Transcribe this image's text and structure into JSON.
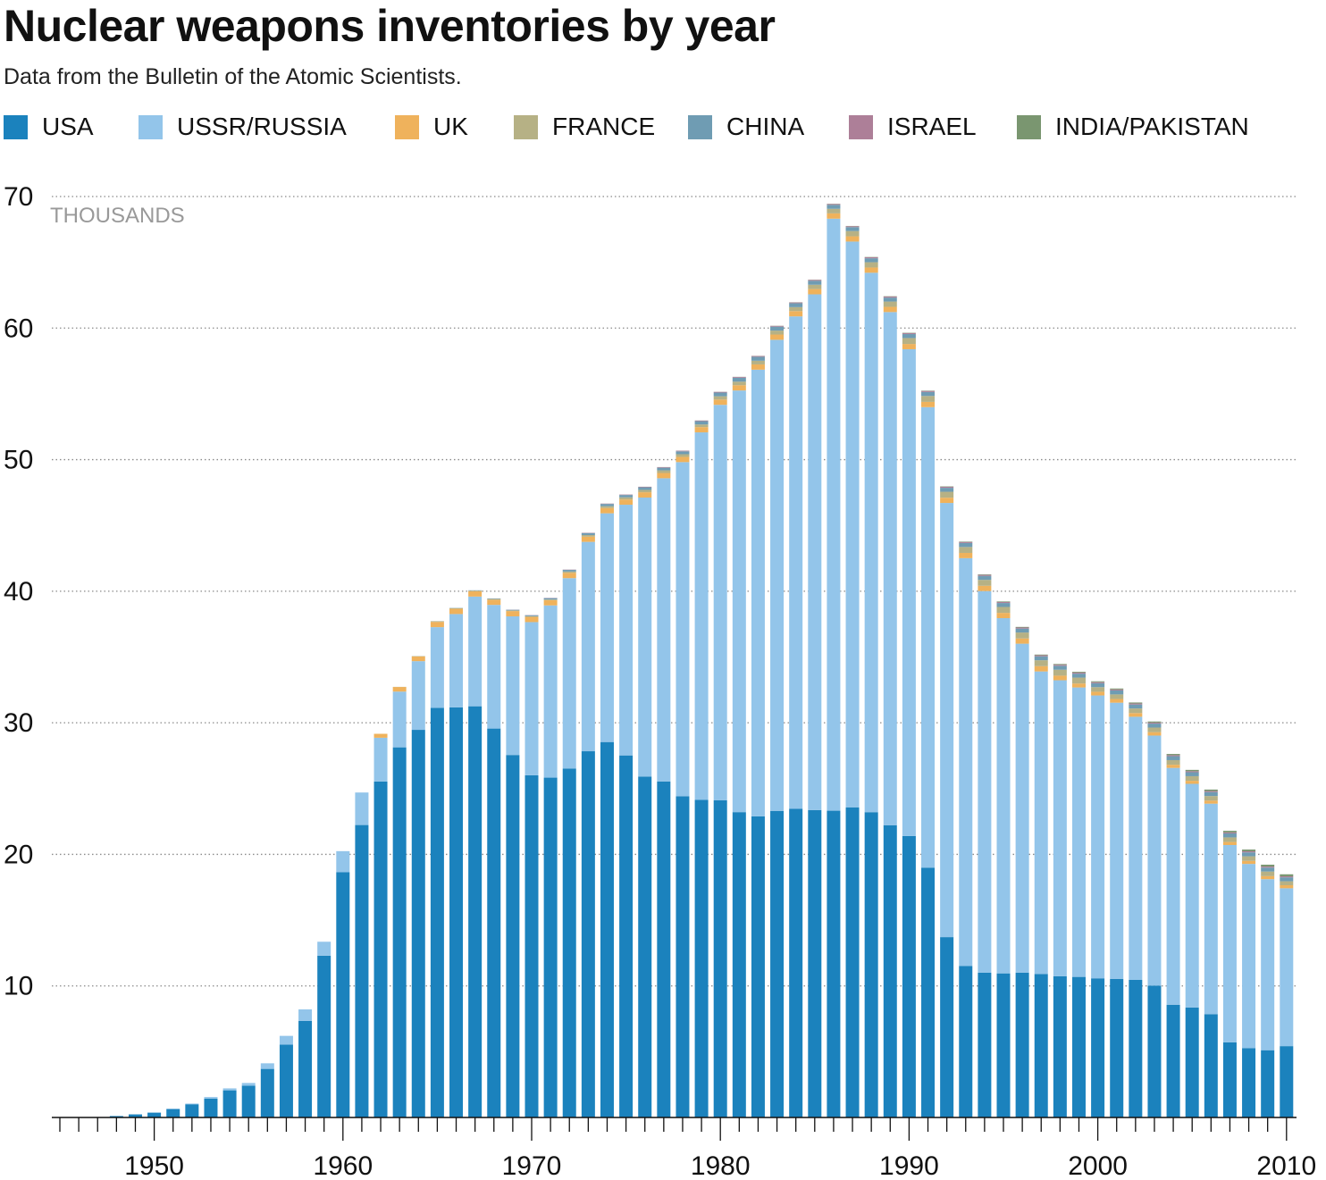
{
  "title": "Nuclear weapons inventories by year",
  "subtitle": "Data from the Bulletin of the Atomic Scientists.",
  "colors": {
    "USA": "#1b82bd",
    "USSR/RUSSIA": "#93c5ea",
    "UK": "#efb25c",
    "FRANCE": "#b6b185",
    "CHINA": "#6f9cb3",
    "ISRAEL": "#ad7f98",
    "INDIA/PAKISTAN": "#7a9670"
  },
  "chart_data": {
    "type": "bar",
    "stacked": true,
    "title": "Nuclear weapons inventories by year",
    "ylabel": "THOUSANDS",
    "ylim": [
      0,
      70
    ],
    "yticks": [
      10,
      20,
      30,
      40,
      50,
      60,
      70
    ],
    "xticks": [
      1950,
      1960,
      1970,
      1980,
      1990,
      2000,
      2010
    ],
    "grid": "horizontal dotted",
    "legend_position": "top",
    "categories": [
      1945,
      1946,
      1947,
      1948,
      1949,
      1950,
      1951,
      1952,
      1953,
      1954,
      1955,
      1956,
      1957,
      1958,
      1959,
      1960,
      1961,
      1962,
      1963,
      1964,
      1965,
      1966,
      1967,
      1968,
      1969,
      1970,
      1971,
      1972,
      1973,
      1974,
      1975,
      1976,
      1977,
      1978,
      1979,
      1980,
      1981,
      1982,
      1983,
      1984,
      1985,
      1986,
      1987,
      1988,
      1989,
      1990,
      1991,
      1992,
      1993,
      1994,
      1995,
      1996,
      1997,
      1998,
      1999,
      2000,
      2001,
      2002,
      2003,
      2004,
      2005,
      2006,
      2007,
      2008,
      2009,
      2010
    ],
    "series": [
      {
        "name": "USA",
        "values": [
          0.006,
          0.011,
          0.032,
          0.11,
          0.235,
          0.369,
          0.64,
          1.005,
          1.436,
          2.063,
          2.422,
          3.692,
          5.543,
          7.345,
          12.298,
          18.638,
          22.229,
          25.54,
          28.133,
          29.463,
          31.139,
          31.175,
          31.255,
          29.561,
          27.552,
          26.008,
          25.83,
          26.516,
          27.835,
          28.537,
          27.519,
          25.914,
          25.542,
          24.418,
          24.138,
          24.104,
          23.208,
          22.886,
          23.305,
          23.459,
          23.368,
          23.317,
          23.575,
          23.205,
          22.217,
          21.392,
          18.99,
          13.708,
          11.511,
          11.012,
          10.953,
          11.011,
          10.903,
          10.732,
          10.685,
          10.577,
          10.526,
          10.457,
          10.027,
          8.57,
          8.36,
          7.853,
          5.709,
          5.273,
          5.113,
          5.423
        ]
      },
      {
        "name": "USSR/RUSSIA",
        "values": [
          0,
          0,
          0,
          0,
          0.001,
          0.005,
          0.025,
          0.05,
          0.12,
          0.15,
          0.2,
          0.426,
          0.66,
          0.869,
          1.06,
          1.605,
          2.471,
          3.322,
          4.238,
          5.221,
          6.129,
          7.089,
          8.339,
          9.399,
          10.538,
          11.643,
          13.092,
          14.478,
          15.915,
          17.385,
          19.055,
          21.205,
          23.044,
          25.393,
          27.935,
          30.062,
          32.049,
          33.952,
          35.804,
          37.431,
          39.197,
          45.0,
          43.0,
          41.0,
          39.0,
          37.0,
          35.0,
          33.0,
          31.0,
          29.0,
          27.0,
          25.0,
          23.0,
          22.5,
          22.0,
          21.5,
          21.0,
          20.0,
          19.0,
          18.0,
          17.0,
          16.0,
          15.0,
          14.0,
          13.0,
          12.0
        ]
      },
      {
        "name": "UK",
        "values": [
          0,
          0,
          0,
          0,
          0,
          0,
          0,
          0,
          0,
          0,
          0,
          0,
          0,
          0,
          0,
          0,
          0,
          0.3,
          0.35,
          0.35,
          0.4,
          0.4,
          0.4,
          0.4,
          0.4,
          0.4,
          0.4,
          0.4,
          0.4,
          0.4,
          0.4,
          0.4,
          0.4,
          0.4,
          0.4,
          0.4,
          0.4,
          0.4,
          0.4,
          0.4,
          0.4,
          0.4,
          0.4,
          0.4,
          0.4,
          0.4,
          0.4,
          0.4,
          0.4,
          0.4,
          0.4,
          0.4,
          0.4,
          0.35,
          0.3,
          0.28,
          0.28,
          0.28,
          0.26,
          0.24,
          0.23,
          0.23,
          0.23,
          0.23,
          0.23,
          0.23
        ]
      },
      {
        "name": "FRANCE",
        "values": [
          0,
          0,
          0,
          0,
          0,
          0,
          0,
          0,
          0,
          0,
          0,
          0,
          0,
          0,
          0,
          0,
          0,
          0,
          0.01,
          0.03,
          0.05,
          0.05,
          0.05,
          0.05,
          0.05,
          0.05,
          0.05,
          0.1,
          0.12,
          0.14,
          0.16,
          0.18,
          0.2,
          0.2,
          0.2,
          0.25,
          0.27,
          0.28,
          0.3,
          0.3,
          0.33,
          0.35,
          0.4,
          0.4,
          0.4,
          0.45,
          0.45,
          0.45,
          0.45,
          0.45,
          0.45,
          0.45,
          0.45,
          0.45,
          0.45,
          0.35,
          0.35,
          0.35,
          0.35,
          0.35,
          0.35,
          0.35,
          0.35,
          0.35,
          0.35,
          0.3
        ]
      },
      {
        "name": "CHINA",
        "values": [
          0,
          0,
          0,
          0,
          0,
          0,
          0,
          0,
          0,
          0,
          0,
          0,
          0,
          0,
          0,
          0,
          0,
          0,
          0,
          0,
          0.005,
          0.02,
          0.025,
          0.035,
          0.05,
          0.075,
          0.1,
          0.13,
          0.15,
          0.17,
          0.18,
          0.2,
          0.2,
          0.22,
          0.25,
          0.28,
          0.3,
          0.3,
          0.3,
          0.3,
          0.3,
          0.3,
          0.3,
          0.3,
          0.3,
          0.3,
          0.3,
          0.3,
          0.3,
          0.3,
          0.3,
          0.3,
          0.3,
          0.3,
          0.3,
          0.3,
          0.3,
          0.3,
          0.3,
          0.3,
          0.3,
          0.3,
          0.3,
          0.3,
          0.3,
          0.3
        ]
      },
      {
        "name": "ISRAEL",
        "values": [
          0,
          0,
          0,
          0,
          0,
          0,
          0,
          0,
          0,
          0,
          0,
          0,
          0,
          0,
          0,
          0,
          0,
          0,
          0,
          0,
          0,
          0,
          0.002,
          0.005,
          0.01,
          0.015,
          0.02,
          0.02,
          0.025,
          0.03,
          0.035,
          0.04,
          0.045,
          0.05,
          0.05,
          0.055,
          0.06,
          0.06,
          0.06,
          0.06,
          0.07,
          0.07,
          0.07,
          0.08,
          0.08,
          0.08,
          0.08,
          0.08,
          0.08,
          0.08,
          0.08,
          0.08,
          0.08,
          0.08,
          0.08,
          0.08,
          0.08,
          0.08,
          0.08,
          0.08,
          0.08,
          0.08,
          0.08,
          0.08,
          0.08,
          0.08
        ]
      },
      {
        "name": "INDIA/PAKISTAN",
        "values": [
          0,
          0,
          0,
          0,
          0,
          0,
          0,
          0,
          0,
          0,
          0,
          0,
          0,
          0,
          0,
          0,
          0,
          0,
          0,
          0,
          0,
          0,
          0,
          0,
          0,
          0,
          0,
          0,
          0,
          0.001,
          0.002,
          0.003,
          0.004,
          0.005,
          0.006,
          0.007,
          0.008,
          0.009,
          0.01,
          0.012,
          0.014,
          0.016,
          0.018,
          0.02,
          0.022,
          0.025,
          0.028,
          0.03,
          0.034,
          0.038,
          0.042,
          0.046,
          0.05,
          0.055,
          0.06,
          0.065,
          0.07,
          0.075,
          0.08,
          0.09,
          0.1,
          0.11,
          0.12,
          0.13,
          0.14,
          0.15
        ]
      }
    ]
  }
}
